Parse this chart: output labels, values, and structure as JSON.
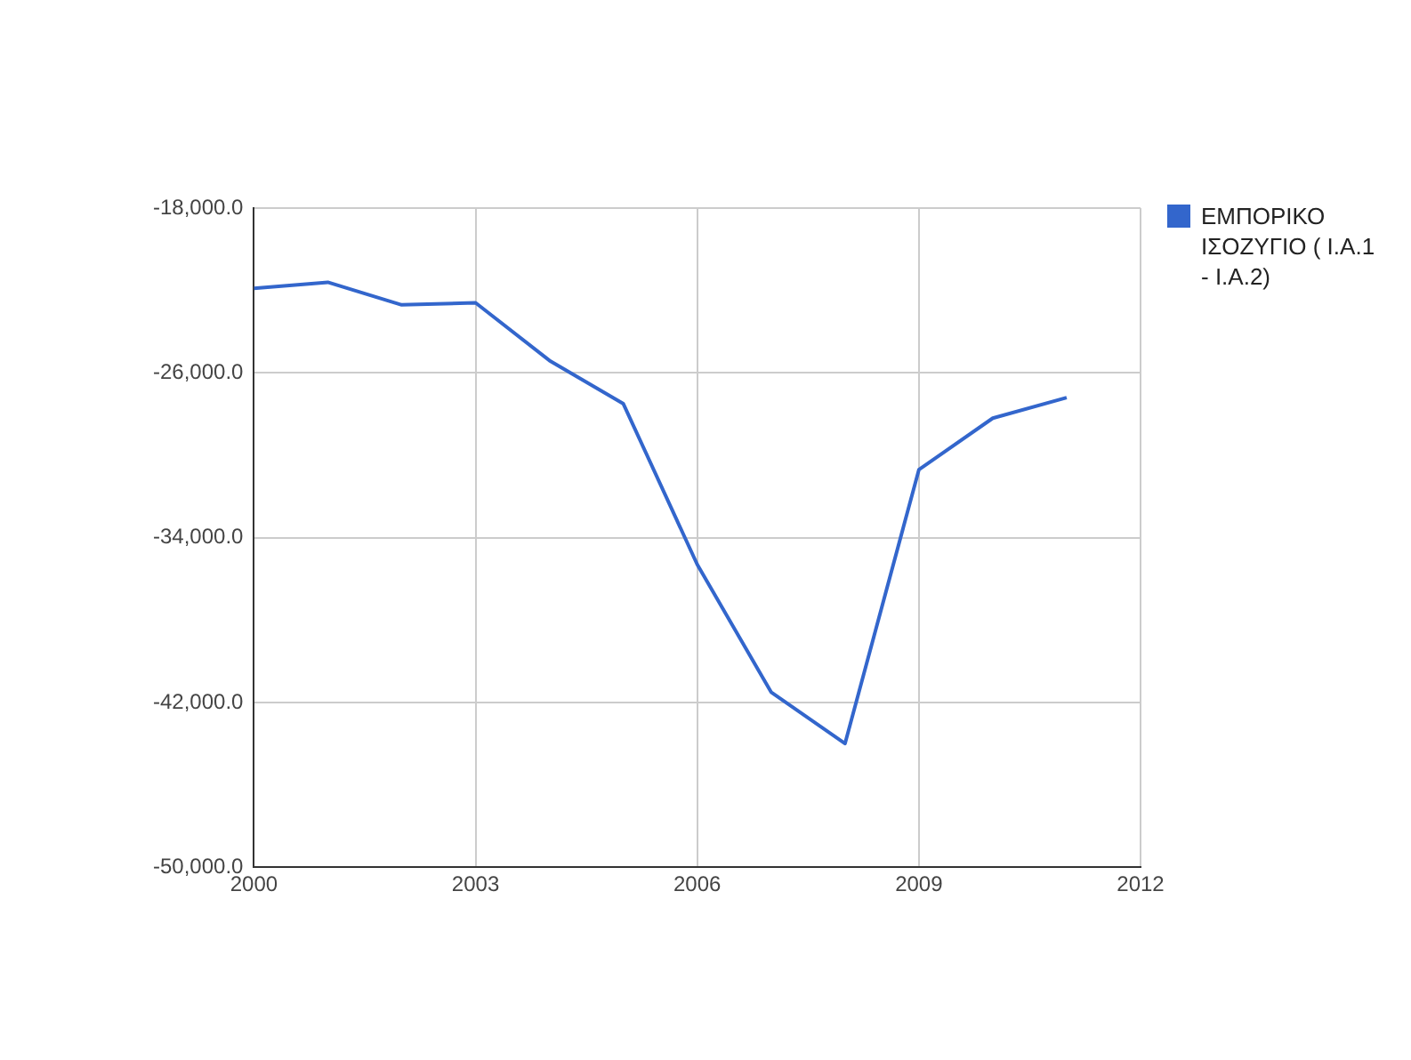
{
  "chart_data": {
    "type": "line",
    "x": [
      2000,
      2001,
      2002,
      2003,
      2004,
      2005,
      2006,
      2007,
      2008,
      2009,
      2010,
      2011
    ],
    "series": [
      {
        "name": "ΕΜΠΟΡΙΚΟ ΙΣΟΖΥΓΙΟ ( I.A.1 - I.A.2)",
        "color": "#3366cc",
        "values": [
          -21900,
          -21600,
          -22700,
          -22600,
          -25400,
          -27500,
          -35300,
          -41500,
          -44000,
          -30700,
          -28200,
          -27200
        ]
      }
    ],
    "xlim": [
      2000,
      2012
    ],
    "xticks": [
      2000,
      2003,
      2006,
      2009,
      2012
    ],
    "ylim": [
      -50000,
      -18000
    ],
    "yticks": [
      {
        "value": -50000,
        "label": "-50,000.0"
      },
      {
        "value": -42000,
        "label": "-42,000.0"
      },
      {
        "value": -34000,
        "label": "-34,000.0"
      },
      {
        "value": -26000,
        "label": "-26,000.0"
      },
      {
        "value": -18000,
        "label": "-18,000.0"
      }
    ],
    "grid": true,
    "legend": "right",
    "marker": "none"
  }
}
